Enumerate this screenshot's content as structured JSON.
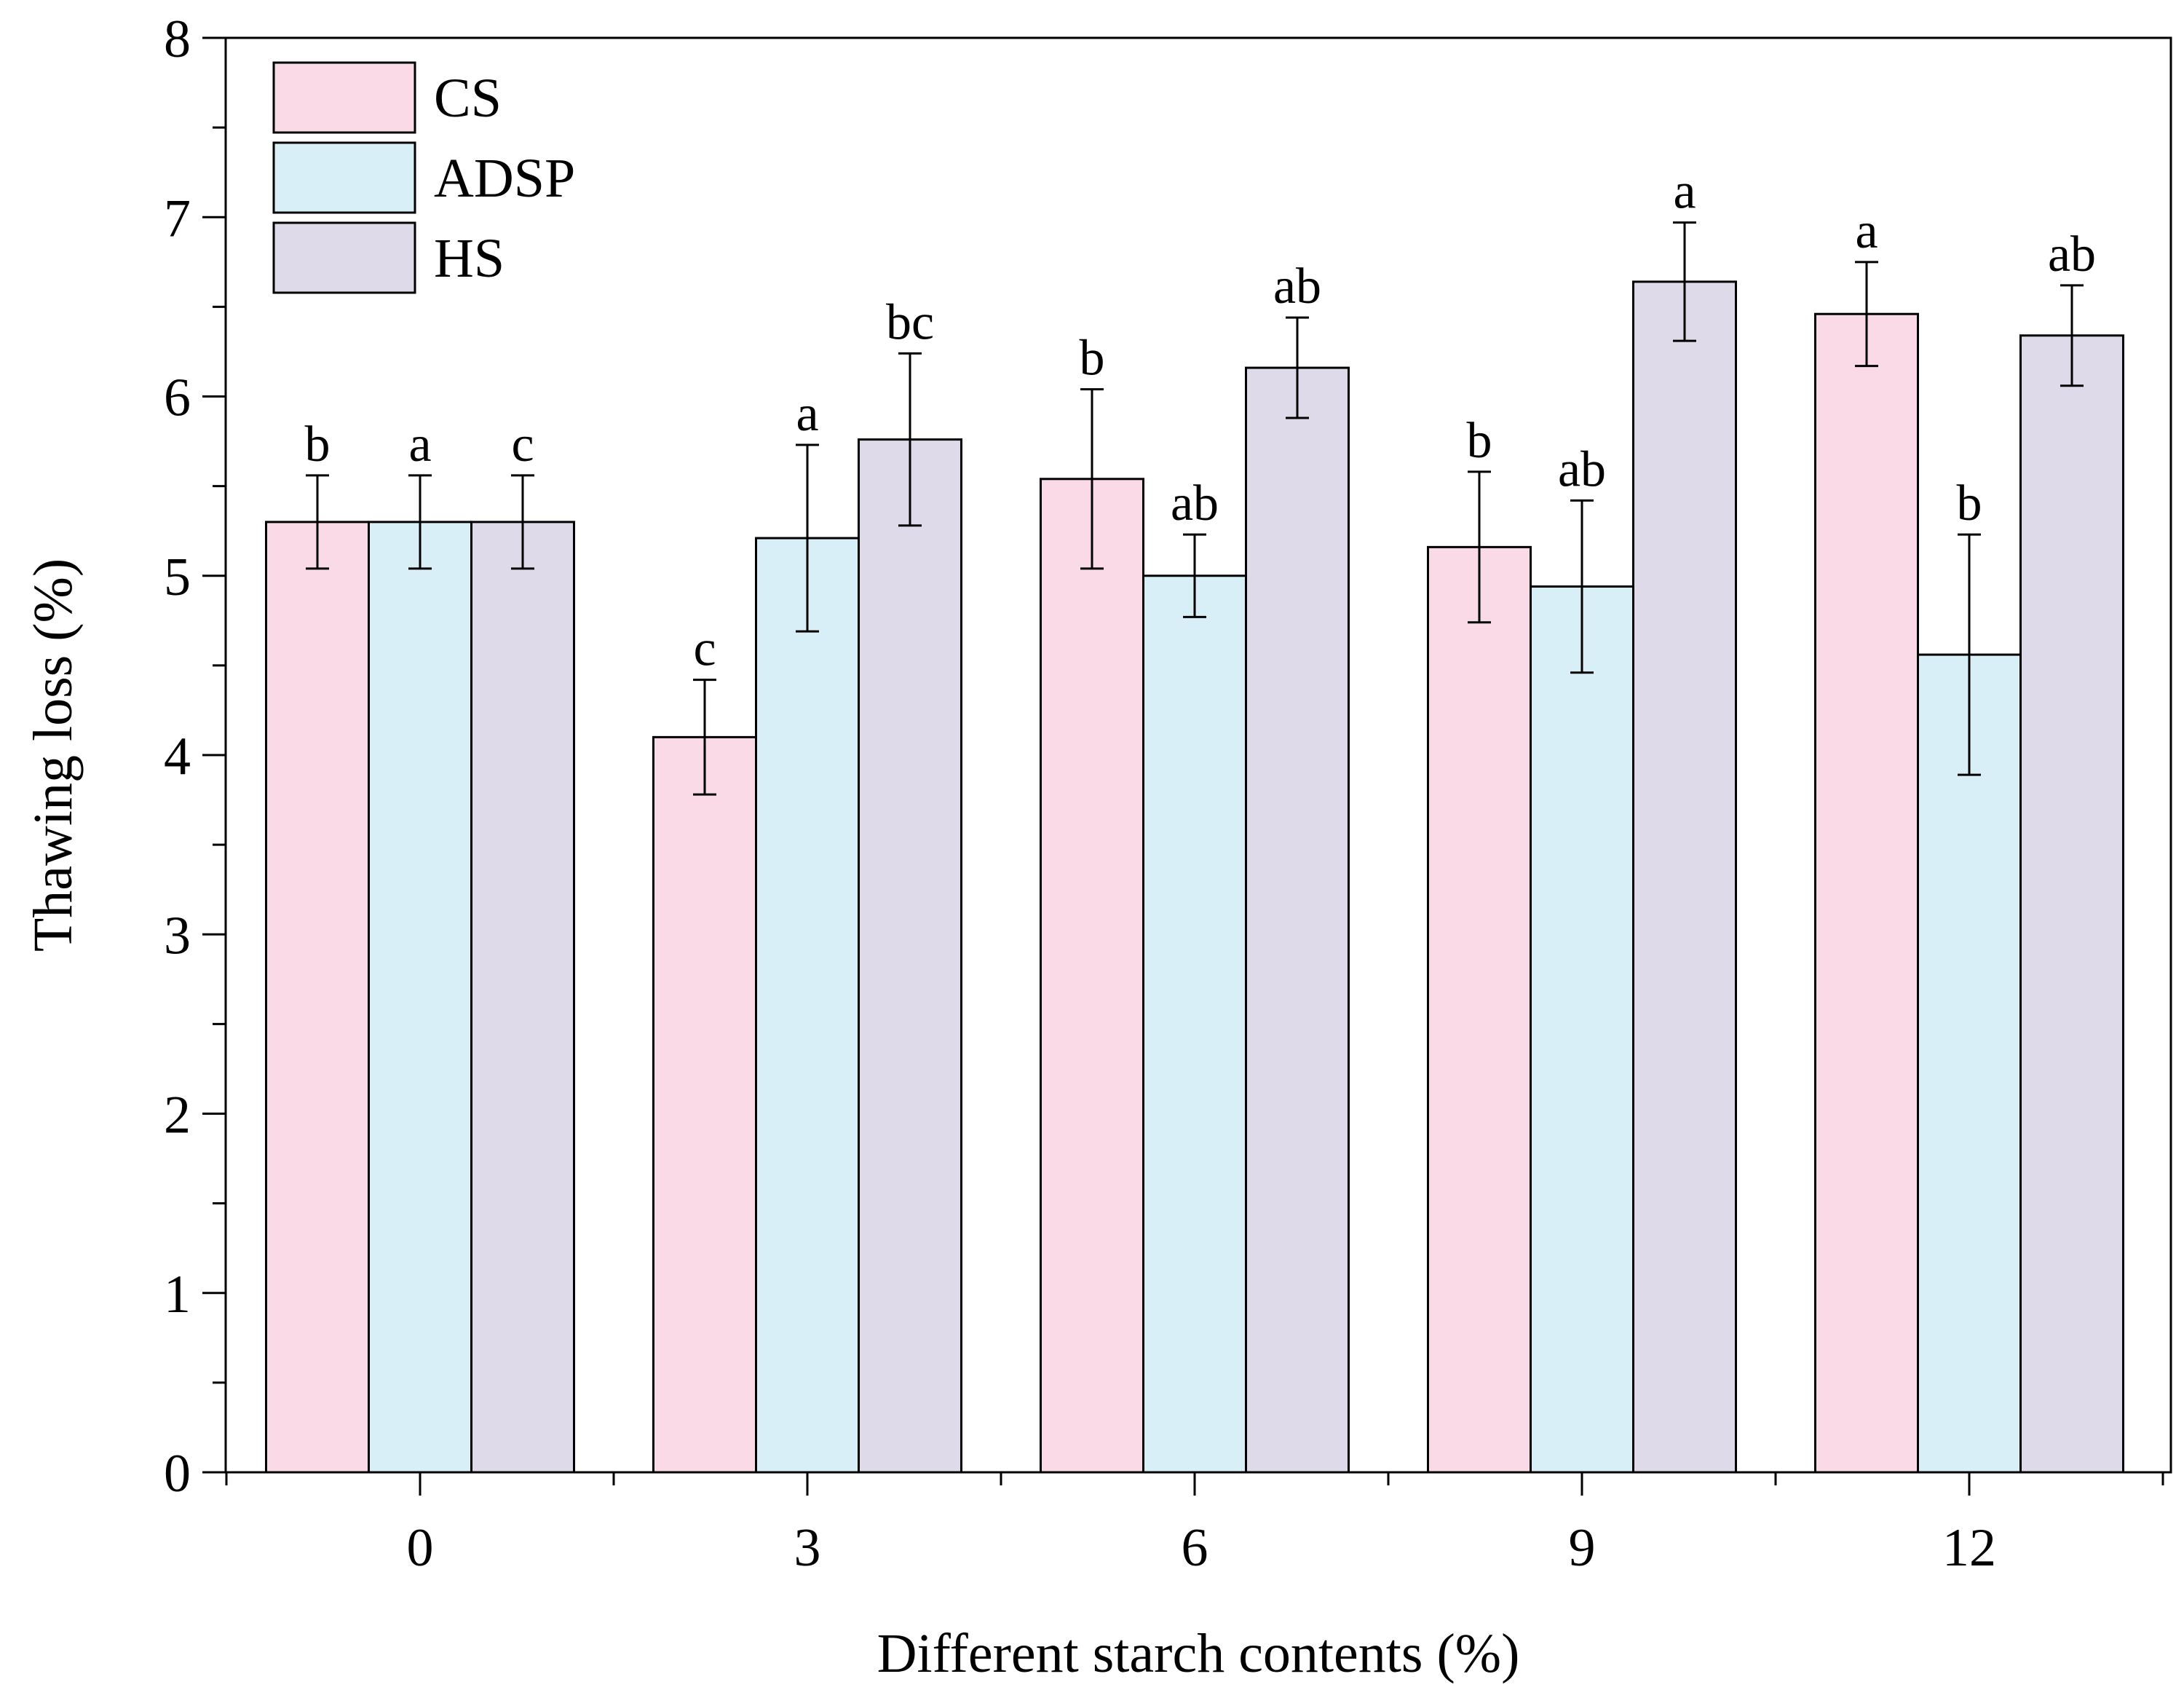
{
  "chart_data": {
    "type": "bar",
    "title": "",
    "xlabel": "Different starch contents (%)",
    "ylabel": "Thawing loss (%)",
    "categories": [
      "0",
      "3",
      "6",
      "9",
      "12"
    ],
    "ylim": [
      0,
      8
    ],
    "yticks": [
      "0",
      "1",
      "2",
      "3",
      "4",
      "5",
      "6",
      "7",
      "8"
    ],
    "legend_position": "top-left",
    "series": [
      {
        "name": "CS",
        "color": "#f9dae6",
        "values": [
          5.3,
          4.1,
          5.54,
          5.16,
          6.46
        ],
        "errors": [
          0.26,
          0.32,
          0.5,
          0.42,
          0.29
        ],
        "labels": [
          "b",
          "c",
          "b",
          "b",
          "a"
        ]
      },
      {
        "name": "ADSP",
        "color": "#d9eff8",
        "values": [
          5.3,
          5.21,
          5.0,
          4.94,
          4.56
        ],
        "errors": [
          0.26,
          0.52,
          0.23,
          0.48,
          0.67
        ],
        "labels": [
          "a",
          "a",
          "ab",
          "ab",
          "b"
        ]
      },
      {
        "name": "HS",
        "color": "#dedaea",
        "values": [
          5.3,
          5.76,
          6.16,
          6.64,
          6.34
        ],
        "errors": [
          0.26,
          0.48,
          0.28,
          0.33,
          0.28
        ],
        "labels": [
          "c",
          "bc",
          "ab",
          "a",
          "ab"
        ]
      }
    ]
  }
}
